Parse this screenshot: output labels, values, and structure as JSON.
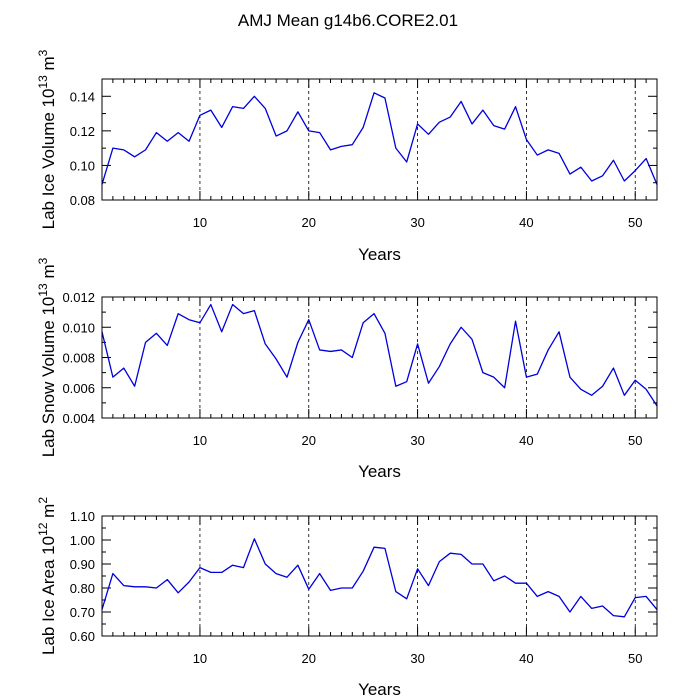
{
  "figure_title": "AMJ Mean g14b6.CORE2.01",
  "colors": {
    "line": "#0000dd",
    "axis": "#000000",
    "grid": "#000000"
  },
  "chart_data": [
    {
      "type": "line",
      "title": "AMJ Mean g14b6.CORE2.01",
      "xlabel": "Years",
      "ylabel_main": "Lab Ice Volume 10",
      "ylabel_exp": "13",
      "ylabel_unit": " m",
      "ylabel_unit_exp": "3",
      "xlim": [
        1,
        52
      ],
      "ylim": [
        0.08,
        0.15
      ],
      "xticks": [
        10,
        20,
        30,
        40,
        50
      ],
      "xtick_labels": [
        "10",
        "20",
        "30",
        "40",
        "50"
      ],
      "yticks": [
        0.08,
        0.1,
        0.12,
        0.14
      ],
      "ytick_labels": [
        "0.08",
        "0.10",
        "0.12",
        "0.14"
      ],
      "vlines": [
        10,
        20,
        30,
        40,
        50
      ],
      "x": [
        1,
        2,
        3,
        4,
        5,
        6,
        7,
        8,
        9,
        10,
        11,
        12,
        13,
        14,
        15,
        16,
        17,
        18,
        19,
        20,
        21,
        22,
        23,
        24,
        25,
        26,
        27,
        28,
        29,
        30,
        31,
        32,
        33,
        34,
        35,
        36,
        37,
        38,
        39,
        40,
        41,
        42,
        43,
        44,
        45,
        46,
        47,
        48,
        49,
        50,
        51,
        52
      ],
      "series": [
        {
          "name": "Lab Ice Volume",
          "values": [
            0.089,
            0.11,
            0.109,
            0.105,
            0.109,
            0.119,
            0.114,
            0.119,
            0.114,
            0.129,
            0.132,
            0.122,
            0.134,
            0.133,
            0.14,
            0.133,
            0.117,
            0.12,
            0.131,
            0.12,
            0.119,
            0.109,
            0.111,
            0.112,
            0.122,
            0.142,
            0.139,
            0.11,
            0.102,
            0.124,
            0.118,
            0.125,
            0.128,
            0.137,
            0.124,
            0.132,
            0.123,
            0.121,
            0.134,
            0.115,
            0.106,
            0.109,
            0.107,
            0.095,
            0.099,
            0.091,
            0.094,
            0.103,
            0.091,
            0.097,
            0.104,
            0.089
          ]
        }
      ]
    },
    {
      "type": "line",
      "xlabel": "Years",
      "ylabel_main": "Lab Snow Volume 10",
      "ylabel_exp": "13",
      "ylabel_unit": " m",
      "ylabel_unit_exp": "3",
      "xlim": [
        1,
        52
      ],
      "ylim": [
        0.004,
        0.012
      ],
      "xticks": [
        10,
        20,
        30,
        40,
        50
      ],
      "xtick_labels": [
        "10",
        "20",
        "30",
        "40",
        "50"
      ],
      "yticks": [
        0.004,
        0.006,
        0.008,
        0.01,
        0.012
      ],
      "ytick_labels": [
        "0.004",
        "0.006",
        "0.008",
        "0.010",
        "0.012"
      ],
      "vlines": [
        10,
        20,
        30,
        40,
        50
      ],
      "x": [
        1,
        2,
        3,
        4,
        5,
        6,
        7,
        8,
        9,
        10,
        11,
        12,
        13,
        14,
        15,
        16,
        17,
        18,
        19,
        20,
        21,
        22,
        23,
        24,
        25,
        26,
        27,
        28,
        29,
        30,
        31,
        32,
        33,
        34,
        35,
        36,
        37,
        38,
        39,
        40,
        41,
        42,
        43,
        44,
        45,
        46,
        47,
        48,
        49,
        50,
        51,
        52
      ],
      "series": [
        {
          "name": "Lab Snow Volume",
          "values": [
            0.0097,
            0.0067,
            0.0073,
            0.0061,
            0.009,
            0.0096,
            0.0088,
            0.0109,
            0.0105,
            0.0103,
            0.0115,
            0.0097,
            0.0115,
            0.0109,
            0.0111,
            0.0089,
            0.0079,
            0.0067,
            0.009,
            0.0105,
            0.0085,
            0.0084,
            0.0085,
            0.008,
            0.0103,
            0.0109,
            0.0096,
            0.0061,
            0.0064,
            0.0089,
            0.0063,
            0.0074,
            0.0089,
            0.01,
            0.0092,
            0.007,
            0.0067,
            0.006,
            0.0104,
            0.0067,
            0.0069,
            0.0085,
            0.0097,
            0.0067,
            0.0059,
            0.0055,
            0.0061,
            0.0073,
            0.0055,
            0.0065,
            0.0059,
            0.0048
          ]
        }
      ]
    },
    {
      "type": "line",
      "xlabel": "Years",
      "ylabel_main": "Lab Ice Area 10",
      "ylabel_exp": "12",
      "ylabel_unit": " m",
      "ylabel_unit_exp": "2",
      "xlim": [
        1,
        52
      ],
      "ylim": [
        0.6,
        1.1
      ],
      "xticks": [
        10,
        20,
        30,
        40,
        50
      ],
      "xtick_labels": [
        "10",
        "20",
        "30",
        "40",
        "50"
      ],
      "yticks": [
        0.6,
        0.7,
        0.8,
        0.9,
        1.0,
        1.1
      ],
      "ytick_labels": [
        "0.60",
        "0.70",
        "0.80",
        "0.90",
        "1.00",
        "1.10"
      ],
      "vlines": [
        10,
        20,
        30,
        40,
        50
      ],
      "x": [
        1,
        2,
        3,
        4,
        5,
        6,
        7,
        8,
        9,
        10,
        11,
        12,
        13,
        14,
        15,
        16,
        17,
        18,
        19,
        20,
        21,
        22,
        23,
        24,
        25,
        26,
        27,
        28,
        29,
        30,
        31,
        32,
        33,
        34,
        35,
        36,
        37,
        38,
        39,
        40,
        41,
        42,
        43,
        44,
        45,
        46,
        47,
        48,
        49,
        50,
        51,
        52
      ],
      "series": [
        {
          "name": "Lab Ice Area",
          "values": [
            0.71,
            0.86,
            0.81,
            0.805,
            0.805,
            0.8,
            0.835,
            0.78,
            0.825,
            0.885,
            0.865,
            0.865,
            0.895,
            0.885,
            1.005,
            0.9,
            0.86,
            0.845,
            0.895,
            0.795,
            0.86,
            0.79,
            0.8,
            0.8,
            0.87,
            0.97,
            0.965,
            0.785,
            0.755,
            0.88,
            0.81,
            0.91,
            0.945,
            0.94,
            0.9,
            0.9,
            0.83,
            0.85,
            0.82,
            0.82,
            0.765,
            0.785,
            0.765,
            0.7,
            0.765,
            0.715,
            0.725,
            0.685,
            0.68,
            0.76,
            0.765,
            0.71
          ]
        }
      ]
    }
  ]
}
